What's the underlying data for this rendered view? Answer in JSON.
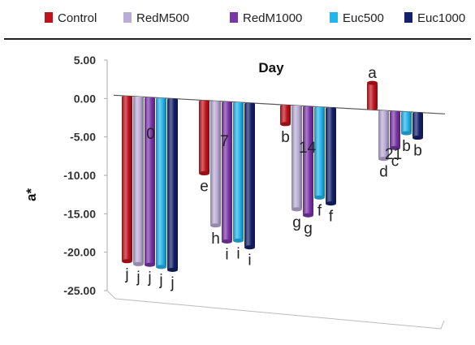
{
  "chart_data": {
    "type": "bar",
    "title": "Day",
    "xlabel": "",
    "ylabel": "a*",
    "ylim": [
      -25,
      5
    ],
    "yticks": [
      "5.00",
      "0.00",
      "-5.00",
      "-10.00",
      "-15.00",
      "-20.00",
      "-25.00"
    ],
    "categories": [
      "0",
      "7",
      "14",
      "21"
    ],
    "legend_position": "top",
    "series": [
      {
        "name": "Control",
        "color": "#c0121c",
        "values": [
          -21.5,
          -9.5,
          -2.5,
          3.5
        ],
        "labels": [
          "j",
          "e",
          "b",
          "a"
        ]
      },
      {
        "name": "RedM500",
        "color": "#b9acd6",
        "values": [
          -21.8,
          -16.2,
          -13.5,
          -6.3
        ],
        "labels": [
          "j",
          "h",
          "g",
          "d"
        ]
      },
      {
        "name": "RedM1000",
        "color": "#7a35a8",
        "values": [
          -21.8,
          -18.2,
          -14.2,
          -4.8
        ],
        "labels": [
          "j",
          "i",
          "g",
          "c"
        ]
      },
      {
        "name": "Euc500",
        "color": "#22b5ea",
        "values": [
          -22.0,
          -18.0,
          -11.8,
          -2.8
        ],
        "labels": [
          "j",
          "i",
          "f",
          "b"
        ]
      },
      {
        "name": "Euc1000",
        "color": "#14216a",
        "values": [
          -22.3,
          -18.8,
          -12.5,
          -3.3
        ],
        "labels": [
          "j",
          "i",
          "f",
          "b"
        ]
      }
    ]
  }
}
